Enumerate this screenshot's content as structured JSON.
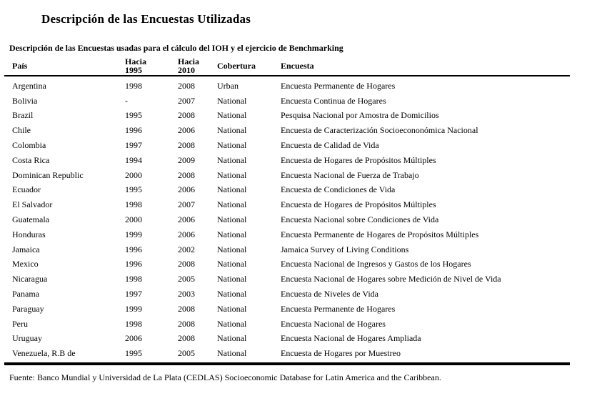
{
  "page": {
    "title": "Descripción de las Encuestas Utilizadas",
    "caption": "Descripción de las Encuestas usadas para el cálculo del IOH y el ejercicio de Benchmarking",
    "source": "Fuente: Banco Mundial y Universidad de La Plata (CEDLAS) Socioeconomic Database for Latin America and the Caribbean."
  },
  "table": {
    "headers": {
      "country": "País",
      "y1995_line1": "Hacia",
      "y1995_line2": "1995",
      "y2010_line1": "Hacia",
      "y2010_line2": "2010",
      "coverage": "Cobertura",
      "survey": "Encuesta"
    },
    "rows": [
      {
        "country": "Argentina",
        "y1995": "1998",
        "y2010": "2008",
        "coverage": "Urban",
        "survey": "Encuesta Permanente de Hogares"
      },
      {
        "country": "Bolivia",
        "y1995": "-",
        "y2010": "2007",
        "coverage": "National",
        "survey": "Encuesta Continua de Hogares"
      },
      {
        "country": "Brazil",
        "y1995": "1995",
        "y2010": "2008",
        "coverage": "National",
        "survey": "Pesquisa Nacional por Amostra de Domicilios"
      },
      {
        "country": "Chile",
        "y1995": "1996",
        "y2010": "2006",
        "coverage": "National",
        "survey": "Encuesta de Caracterización Socioecononómica Nacional"
      },
      {
        "country": "Colombia",
        "y1995": "1997",
        "y2010": "2008",
        "coverage": "National",
        "survey": "Encuesta de Calidad de Vida"
      },
      {
        "country": "Costa Rica",
        "y1995": "1994",
        "y2010": "2009",
        "coverage": "National",
        "survey": "Encuesta de Hogares de Propósitos Múltiples"
      },
      {
        "country": "Dominican Republic",
        "y1995": "2000",
        "y2010": "2008",
        "coverage": "National",
        "survey": "Encuesta Nacional de Fuerza de Trabajo"
      },
      {
        "country": "Ecuador",
        "y1995": "1995",
        "y2010": "2006",
        "coverage": "National",
        "survey": "Encuesta de Condiciones de Vida"
      },
      {
        "country": "El Salvador",
        "y1995": "1998",
        "y2010": "2007",
        "coverage": "National",
        "survey": "Encuesta de Hogares de Propósitos Múltiples"
      },
      {
        "country": "Guatemala",
        "y1995": "2000",
        "y2010": "2006",
        "coverage": "National",
        "survey": "Encuesta Nacional sobre Condiciones de Vida"
      },
      {
        "country": "Honduras",
        "y1995": "1999",
        "y2010": "2006",
        "coverage": "National",
        "survey": "Encuesta Permanente de Hogares de Propósitos Múltiples"
      },
      {
        "country": "Jamaica",
        "y1995": "1996",
        "y2010": "2002",
        "coverage": "National",
        "survey": "Jamaica Survey of Living Conditions"
      },
      {
        "country": "Mexico",
        "y1995": "1996",
        "y2010": "2008",
        "coverage": "National",
        "survey": "Encuesta Nacional de Ingresos y Gastos de los Hogares"
      },
      {
        "country": "Nicaragua",
        "y1995": "1998",
        "y2010": "2005",
        "coverage": "National",
        "survey": "Encuesta Nacional de Hogares sobre Medición de Nivel de Vida"
      },
      {
        "country": "Panama",
        "y1995": "1997",
        "y2010": "2003",
        "coverage": "National",
        "survey": "Encuesta de Niveles de Vida"
      },
      {
        "country": "Paraguay",
        "y1995": "1999",
        "y2010": "2008",
        "coverage": "National",
        "survey": "Encuesta Permanente de Hogares"
      },
      {
        "country": "Peru",
        "y1995": "1998",
        "y2010": "2008",
        "coverage": "National",
        "survey": "Encuesta Nacional de Hogares"
      },
      {
        "country": "Uruguay",
        "y1995": "2006",
        "y2010": "2008",
        "coverage": "National",
        "survey": "Encuesta Nacional de Hogares Ampliada"
      },
      {
        "country": "Venezuela, R.B de",
        "y1995": "1995",
        "y2010": "2005",
        "coverage": "National",
        "survey": "Encuesta de Hogares por Muestreo"
      }
    ]
  }
}
